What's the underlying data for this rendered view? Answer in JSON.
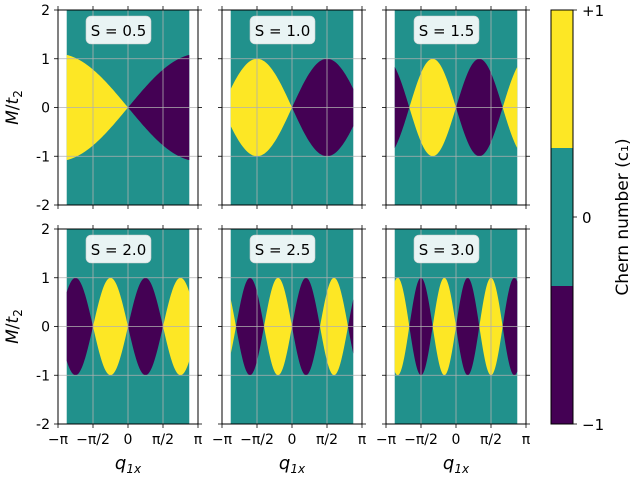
{
  "chart_data": {
    "type": "heatmap",
    "description_series": "Chern number phase diagram c1 vs q1x and M/t2 for six values of S",
    "xlabel": "q_1x",
    "ylabel": "M/t_2",
    "x_range": [
      -3.1416,
      3.1416
    ],
    "y_range": [
      -2,
      2
    ],
    "x_ticks": [
      -3.1416,
      -1.5708,
      0,
      1.5708,
      3.1416
    ],
    "x_tick_labels": [
      "−π",
      "−π/2",
      "0",
      "π/2",
      "π"
    ],
    "y_ticks": [
      -2,
      -1,
      0,
      1,
      2
    ],
    "y_tick_labels": [
      "-2",
      "-1",
      "0",
      "1",
      "2"
    ],
    "data_x_range": [
      -2.75,
      2.75
    ],
    "data_y_range": [
      -2,
      2
    ],
    "grid": true,
    "panels": [
      {
        "S": 0.5,
        "label": "S = 0.5",
        "lobe_amplitude": 1.1,
        "sign_at_left": 1
      },
      {
        "S": 1.0,
        "label": "S = 1.0",
        "lobe_amplitude": 1.0,
        "sign_at_left": 1
      },
      {
        "S": 1.5,
        "label": "S = 1.5",
        "lobe_amplitude": 1.0,
        "sign_at_left": -1
      },
      {
        "S": 2.0,
        "label": "S = 2.0",
        "lobe_amplitude": 1.0,
        "sign_at_left": -1
      },
      {
        "S": 2.5,
        "label": "S = 2.5",
        "lobe_amplitude": 1.0,
        "sign_at_left": 1
      },
      {
        "S": 3.0,
        "label": "S = 3.0",
        "lobe_amplitude": 1.0,
        "sign_at_left": 1
      }
    ],
    "colorbar": {
      "label": "Chern number (c₁)",
      "levels": [
        {
          "value": 1,
          "label": "+1",
          "color": "#fde725"
        },
        {
          "value": 0,
          "label": "0",
          "color": "#21918c"
        },
        {
          "value": -1,
          "label": "−1",
          "color": "#440154"
        }
      ]
    }
  }
}
